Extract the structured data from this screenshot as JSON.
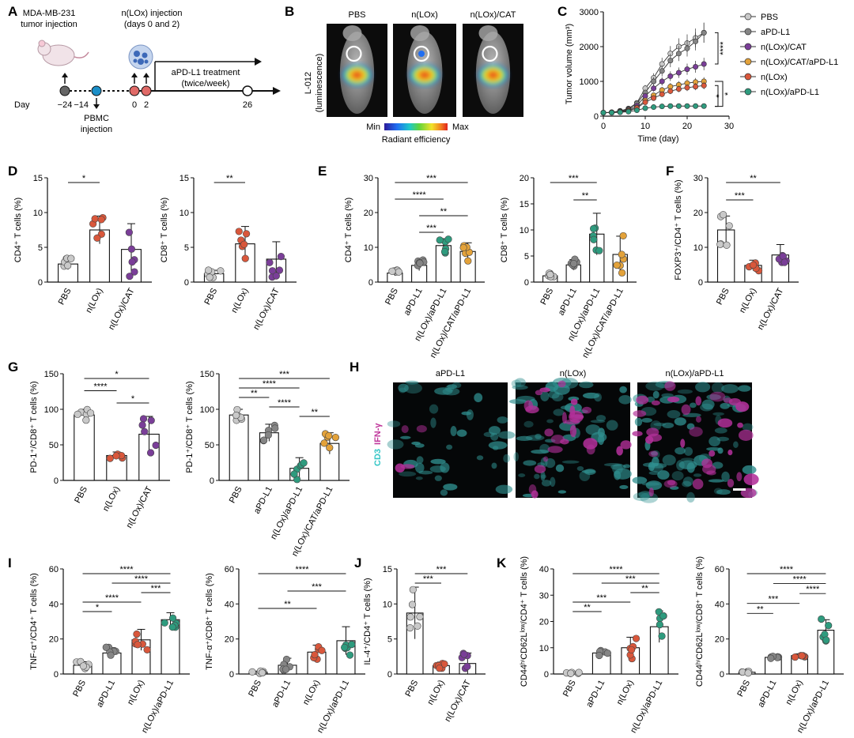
{
  "colors": {
    "PBS": "#c9c9c9",
    "aPD-L1": "#858585",
    "n(LOx)": "#d9573b",
    "n(LOx)/CAT": "#7a3e98",
    "n(LOx)/CAT/aPD-L1": "#e3a23a",
    "n(LOx)/aPD-L1": "#2e9b7e"
  },
  "panelA": {
    "label": "A",
    "tumor_injection": [
      "MDA-MB-231",
      "tumor injection"
    ],
    "nlox_injection": [
      "n(LOx) injection",
      "(days 0 and 2)"
    ],
    "treatment": [
      "aPD-L1 treatment",
      "(twice/week)"
    ],
    "day_label": "Day",
    "days": [
      "−24",
      "−14",
      "0",
      "2",
      "26"
    ],
    "pbmc": [
      "PBMC",
      "injection"
    ]
  },
  "panelB": {
    "label": "B",
    "groups": [
      "PBS",
      "n(LOx)",
      "n(LOx)/CAT"
    ],
    "ylabel": [
      "L-012",
      "(luminescence)"
    ],
    "scale": {
      "min": "Min",
      "max": "Max",
      "caption": "Radiant efficiency"
    }
  },
  "chart_data": [
    {
      "panel": "C",
      "type": "line",
      "xlabel": "Time (day)",
      "ylabel": "Tumor volume (mm³)",
      "xlim": [
        0,
        30
      ],
      "ylim": [
        0,
        3000
      ],
      "xticks": [
        "0",
        "10",
        "20",
        "30"
      ],
      "yticks": [
        "0",
        "1000",
        "2000",
        "3000"
      ],
      "legend": "right",
      "x": [
        0,
        2,
        4,
        6,
        8,
        10,
        12,
        14,
        16,
        18,
        20,
        22,
        24
      ],
      "series": [
        {
          "name": "PBS",
          "values": [
            100,
            110,
            150,
            220,
            380,
            800,
            1100,
            1500,
            1800,
            2000,
            2100,
            2250,
            2400
          ]
        },
        {
          "name": "aPD-L1",
          "values": [
            100,
            110,
            150,
            210,
            360,
            680,
            1000,
            1300,
            1600,
            1800,
            1950,
            2150,
            2400
          ]
        },
        {
          "name": "n(LOx)/CAT",
          "values": [
            100,
            110,
            140,
            190,
            300,
            580,
            800,
            1000,
            1150,
            1250,
            1350,
            1420,
            1500
          ]
        },
        {
          "name": "n(LOx)/CAT/aPD-L1",
          "values": [
            100,
            105,
            130,
            170,
            250,
            450,
            600,
            750,
            850,
            900,
            950,
            980,
            1000
          ]
        },
        {
          "name": "n(LOx)",
          "values": [
            100,
            100,
            120,
            150,
            230,
            400,
            520,
            630,
            720,
            780,
            820,
            850,
            880
          ]
        },
        {
          "name": "n(LOx)/aPD-L1",
          "values": [
            100,
            100,
            110,
            130,
            170,
            230,
            260,
            280,
            290,
            290,
            290,
            290,
            290
          ]
        }
      ],
      "annotations": [
        "****",
        "*",
        "*"
      ]
    },
    {
      "panel": "D",
      "type": "bar",
      "ylabel": "CD4⁺ T cells (%)",
      "ylim": [
        0,
        15
      ],
      "yticks": [
        "0",
        "5",
        "10",
        "15"
      ],
      "categories": [
        "PBS",
        "n(LOx)",
        "n(LOx)/CAT"
      ],
      "values": [
        2.6,
        7.5,
        4.7
      ],
      "errors": [
        0.8,
        2.0,
        3.7
      ],
      "sig": [
        {
          "a": 0,
          "b": 1,
          "text": "*"
        }
      ]
    },
    {
      "panel": "D",
      "type": "bar",
      "ylabel": "CD8⁺ T cells (%)",
      "ylim": [
        0,
        15
      ],
      "yticks": [
        "0",
        "5",
        "10",
        "15"
      ],
      "categories": [
        "PBS",
        "n(LOx)",
        "n(LOx)/CAT"
      ],
      "values": [
        1.2,
        5.5,
        3.3
      ],
      "errors": [
        0.5,
        2.5,
        2.5
      ],
      "sig": [
        {
          "a": 0,
          "b": 1,
          "text": "**"
        }
      ]
    },
    {
      "panel": "E",
      "type": "bar",
      "ylabel": "CD4⁺ T cells (%)",
      "ylim": [
        0,
        30
      ],
      "yticks": [
        "0",
        "10",
        "20",
        "30"
      ],
      "categories": [
        "PBS",
        "aPD-L1",
        "n(LOx)/aPD-L1",
        "n(LOx)/CAT/aPD-L1"
      ],
      "values": [
        2.6,
        4.8,
        10.5,
        8.8
      ],
      "errors": [
        0.8,
        1.5,
        2.0,
        2.5
      ],
      "sig": [
        {
          "a": 0,
          "b": 3,
          "text": "***"
        },
        {
          "a": 0,
          "b": 2,
          "text": "****"
        },
        {
          "a": 1,
          "b": 3,
          "text": "**"
        },
        {
          "a": 1,
          "b": 2,
          "text": "***"
        }
      ]
    },
    {
      "panel": "E",
      "type": "bar",
      "ylabel": "CD8⁺ T cells (%)",
      "ylim": [
        0,
        20
      ],
      "yticks": [
        "0",
        "5",
        "10",
        "15",
        "20"
      ],
      "categories": [
        "PBS",
        "aPD-L1",
        "n(LOx)/aPD-L1",
        "n(LOx)/CAT/aPD-L1"
      ],
      "values": [
        1.2,
        3.3,
        9.2,
        5.3
      ],
      "errors": [
        0.5,
        1.0,
        4.0,
        3.5
      ],
      "sig": [
        {
          "a": 0,
          "b": 2,
          "text": "***"
        },
        {
          "a": 1,
          "b": 2,
          "text": "**"
        }
      ]
    },
    {
      "panel": "F",
      "type": "bar",
      "ylabel": "FOXP3⁺/CD4⁺ T cells (%)",
      "ylim": [
        0,
        30
      ],
      "yticks": [
        "0",
        "10",
        "20",
        "30"
      ],
      "categories": [
        "PBS",
        "n(LOx)",
        "n(LOx)/CAT"
      ],
      "values": [
        15,
        4.8,
        7.8
      ],
      "errors": [
        4.0,
        1.5,
        3.0
      ],
      "sig": [
        {
          "a": 0,
          "b": 2,
          "text": "**"
        },
        {
          "a": 0,
          "b": 1,
          "text": "***"
        }
      ]
    },
    {
      "panel": "G",
      "type": "bar",
      "ylabel": "PD-1⁺/CD8⁺ T cells (%)",
      "ylim": [
        0,
        150
      ],
      "yticks": [
        "0",
        "50",
        "100",
        "150"
      ],
      "categories": [
        "PBS",
        "n(LOx)",
        "n(LOx)/CAT"
      ],
      "values": [
        92,
        35,
        65
      ],
      "errors": [
        8,
        5,
        25
      ],
      "sig": [
        {
          "a": 0,
          "b": 2,
          "text": "*"
        },
        {
          "a": 0,
          "b": 1,
          "text": "****"
        },
        {
          "a": 1,
          "b": 2,
          "text": "*"
        }
      ]
    },
    {
      "panel": "G",
      "type": "bar",
      "ylabel": "PD-1⁺/CD8⁺ T cells (%)",
      "ylim": [
        0,
        150
      ],
      "yticks": [
        "0",
        "50",
        "100",
        "150"
      ],
      "categories": [
        "PBS",
        "aPD-L1",
        "n(LOx)/aPD-L1",
        "n(LOx)/CAT/aPD-L1"
      ],
      "values": [
        92,
        67,
        17,
        52
      ],
      "errors": [
        8,
        12,
        15,
        15
      ],
      "sig": [
        {
          "a": 0,
          "b": 3,
          "text": "***"
        },
        {
          "a": 0,
          "b": 2,
          "text": "****"
        },
        {
          "a": 0,
          "b": 1,
          "text": "**"
        },
        {
          "a": 1,
          "b": 2,
          "text": "****"
        },
        {
          "a": 2,
          "b": 3,
          "text": "**"
        }
      ]
    },
    {
      "panel": "I",
      "type": "bar",
      "ylabel": "TNF-α⁺/CD4⁺ T cells (%)",
      "ylim": [
        0,
        60
      ],
      "yticks": [
        "0",
        "20",
        "40",
        "60"
      ],
      "categories": [
        "PBS",
        "aPD-L1",
        "n(LOx)",
        "n(LOx)/aPD-L1"
      ],
      "values": [
        5,
        12,
        19.5,
        31
      ],
      "errors": [
        2,
        3,
        6,
        4
      ],
      "sig": [
        {
          "a": 0,
          "b": 3,
          "text": "****"
        },
        {
          "a": 1,
          "b": 3,
          "text": "****"
        },
        {
          "a": 2,
          "b": 3,
          "text": "***"
        },
        {
          "a": 0,
          "b": 2,
          "text": "****"
        },
        {
          "a": 0,
          "b": 1,
          "text": "*"
        }
      ]
    },
    {
      "panel": "I",
      "type": "bar",
      "ylabel": "TNF-α⁺/CD8⁺ T cells (%)",
      "ylim": [
        0,
        60
      ],
      "yticks": [
        "0",
        "20",
        "40",
        "60"
      ],
      "categories": [
        "PBS",
        "aPD-L1",
        "n(LOx)",
        "n(LOx)/aPD-L1"
      ],
      "values": [
        1,
        5,
        12.5,
        19
      ],
      "errors": [
        0.7,
        4,
        4,
        8
      ],
      "sig": [
        {
          "a": 0,
          "b": 3,
          "text": "****"
        },
        {
          "a": 1,
          "b": 3,
          "text": "***"
        },
        {
          "a": 0,
          "b": 2,
          "text": "**"
        }
      ]
    },
    {
      "panel": "J",
      "type": "bar",
      "ylabel": "IL-4⁺/CD4⁺ T cells (%)",
      "ylim": [
        0,
        15
      ],
      "yticks": [
        "0",
        "5",
        "10",
        "15"
      ],
      "categories": [
        "PBS",
        "n(LOx)",
        "n(LOx)/CAT"
      ],
      "values": [
        8.7,
        1.2,
        1.5
      ],
      "errors": [
        3.7,
        0.5,
        1.5
      ],
      "sig": [
        {
          "a": 0,
          "b": 2,
          "text": "***"
        },
        {
          "a": 0,
          "b": 1,
          "text": "***"
        }
      ]
    },
    {
      "panel": "K",
      "type": "bar",
      "ylabel": "CD44ʰⁱCD62Lˡᵒʷ/CD4⁺ T cells (%)",
      "ylim": [
        0,
        40
      ],
      "yticks": [
        "0",
        "10",
        "20",
        "30",
        "40"
      ],
      "categories": [
        "PBS",
        "aPD-L1",
        "n(LOx)",
        "n(LOx)/aPD-L1"
      ],
      "values": [
        0.4,
        8,
        10,
        18
      ],
      "errors": [
        0.2,
        1,
        4,
        6
      ],
      "sig": [
        {
          "a": 0,
          "b": 3,
          "text": "****"
        },
        {
          "a": 1,
          "b": 3,
          "text": "***"
        },
        {
          "a": 2,
          "b": 3,
          "text": "**"
        },
        {
          "a": 0,
          "b": 2,
          "text": "***"
        },
        {
          "a": 0,
          "b": 1,
          "text": "**"
        }
      ]
    },
    {
      "panel": "K",
      "type": "bar",
      "ylabel": "CD44ʰⁱCD62Lˡᵒʷ/CD8⁺ T cells (%)",
      "ylim": [
        0,
        60
      ],
      "yticks": [
        "0",
        "20",
        "40",
        "60"
      ],
      "categories": [
        "PBS",
        "aPD-L1",
        "n(LOx)",
        "n(LOx)/aPD-L1"
      ],
      "values": [
        1,
        9.5,
        10.5,
        25
      ],
      "errors": [
        0.5,
        0.5,
        1,
        6
      ],
      "sig": [
        {
          "a": 0,
          "b": 3,
          "text": "****"
        },
        {
          "a": 1,
          "b": 3,
          "text": "****"
        },
        {
          "a": 2,
          "b": 3,
          "text": "****"
        },
        {
          "a": 0,
          "b": 2,
          "text": "***"
        },
        {
          "a": 0,
          "b": 1,
          "text": "**"
        }
      ]
    }
  ],
  "panelH": {
    "label": "H",
    "groups": [
      "aPD-L1",
      "n(LOx)",
      "n(LOx)/aPD-L1"
    ],
    "stain_cd3": "CD3",
    "stain_ifn": "IFN-γ"
  },
  "panel_labels": {
    "C": "C",
    "D": "D",
    "E": "E",
    "F": "F",
    "G": "G",
    "I": "I",
    "J": "J",
    "K": "K"
  }
}
